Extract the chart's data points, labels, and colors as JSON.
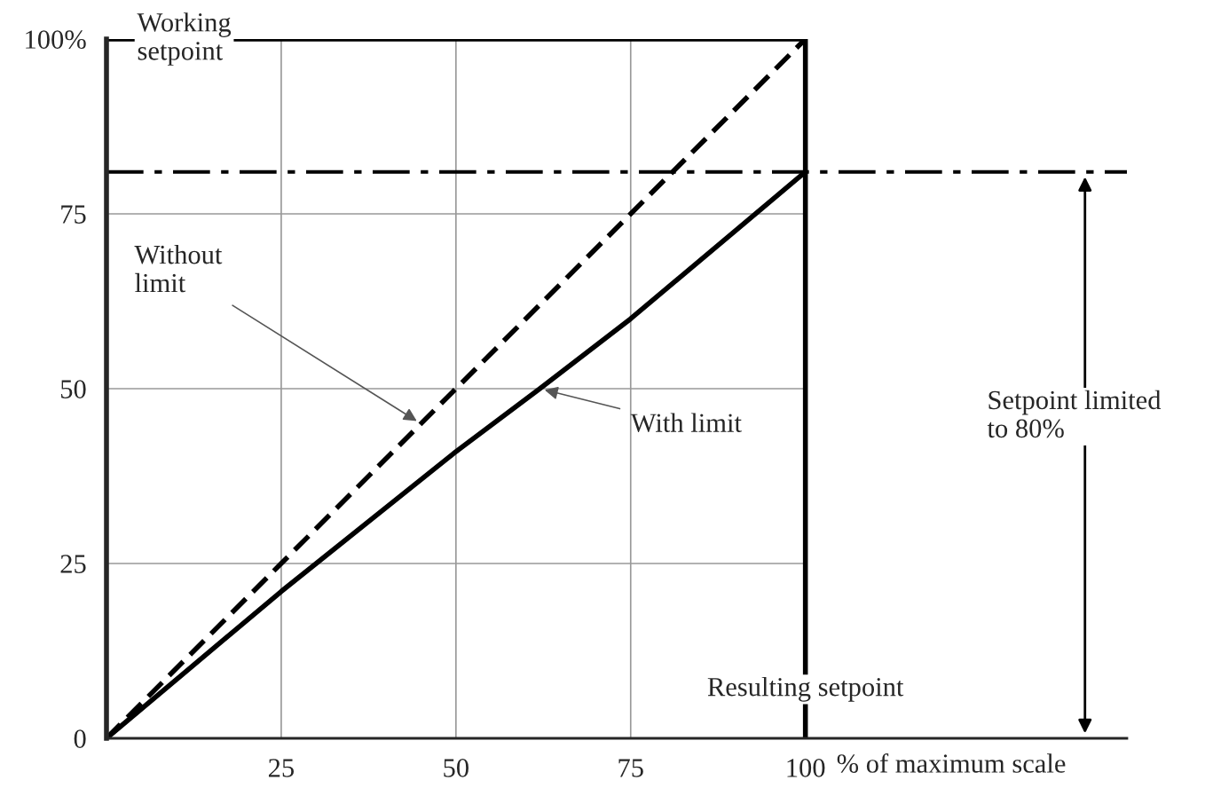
{
  "chart_data": {
    "type": "line",
    "ylabel": "Working\nsetpoint",
    "xlabel": "% of maximum scale",
    "x": [
      0,
      25,
      50,
      62,
      75,
      100
    ],
    "series": [
      {
        "color": "#000000",
        "line_style": "dashed",
        "values": [
          0,
          25,
          50,
          62,
          75,
          100
        ]
      },
      {
        "color": "#000000",
        "line_style": "solid",
        "values": [
          0,
          21,
          41,
          50,
          60,
          81
        ]
      }
    ],
    "xlim": [
      0,
      146
    ],
    "ylim": [
      0,
      100
    ],
    "xticks": [
      25,
      50,
      75,
      100
    ],
    "yticks": [
      0,
      25,
      50,
      75,
      {
        "value": 100,
        "label": "100%"
      }
    ],
    "grid": true,
    "legend": false,
    "marker": "none",
    "ref_lines": [
      {
        "axis": "y",
        "value": 81,
        "color": "#000000",
        "line_style": "dashdot"
      },
      {
        "axis": "x",
        "value": 100,
        "color": "#000000",
        "line_style": "solid"
      },
      {
        "axis": "y",
        "value": 100,
        "color": "#000000",
        "line_style": "solid"
      }
    ],
    "annotations": [
      {
        "text": "Without\nlimit",
        "x": 45,
        "y": 45
      },
      {
        "text": "With limit",
        "x": 62,
        "y": 50
      },
      "Setpoint limited\nto 80%",
      "Resulting setpoint"
    ]
  }
}
